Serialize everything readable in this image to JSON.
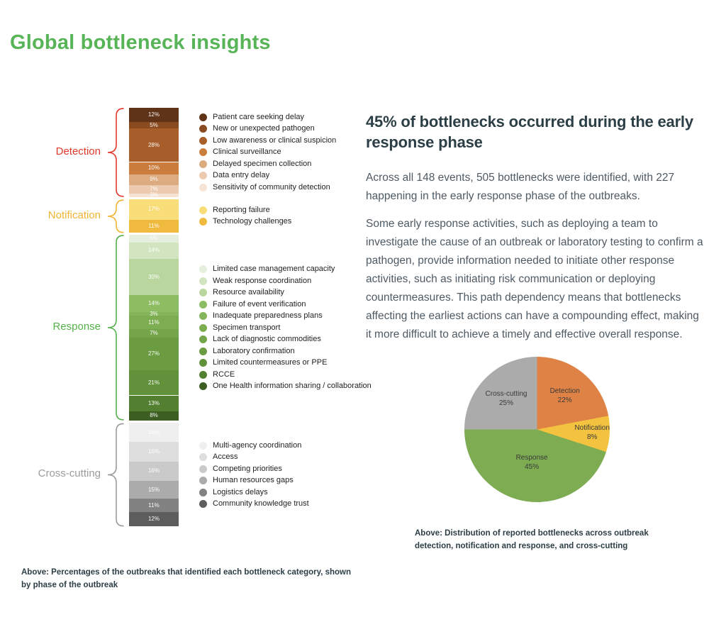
{
  "page": {
    "title": "Global bottleneck insights",
    "title_color": "#57b457",
    "background": "#ffffff"
  },
  "article": {
    "headline": "45% of bottlenecks occurred during the early response phase",
    "paragraphs": [
      "Across all 148 events, 505 bottlenecks were identified, with 227 happening in the early response phase of the outbreaks.",
      "Some early response activities, such as deploying a team to investigate the cause of an outbreak or laboratory testing to confirm a pathogen, provide information needed to initiate other response activities, such as initiating risk communication or deploying countermeasures. This path dependency means that bottlenecks affecting the earliest actions can have a compounding effect, making it more difficult to achieve a timely and effective overall response."
    ]
  },
  "captions": {
    "bar": "Above: Percentages of the outbreaks that identified each bottleneck category, shown by phase of the outbreak",
    "pie": "Above: Distribution of reported bottlenecks across outbreak detection, notification and response, and cross-cutting"
  },
  "chart_data": [
    {
      "type": "bar",
      "stacked": true,
      "orientation": "vertical-stack",
      "value_suffix": "%",
      "note": "values are percentages of outbreaks identifying each bottleneck category",
      "groups": [
        {
          "phase": "Detection",
          "color": "#e2392c",
          "items": [
            {
              "label": "Patient care seeking delay",
              "value": 12,
              "color": "#5e3317"
            },
            {
              "label": "New or unexpected pathogen",
              "value": 5,
              "color": "#8a4a1f"
            },
            {
              "label": "Low awareness or clinical suspicion",
              "value": 28,
              "color": "#a75e2b"
            },
            {
              "label": "Clinical surveillance",
              "value": 10,
              "color": "#cb7d3d"
            },
            {
              "label": "Delayed specimen collection",
              "value": 9,
              "color": "#dcab80"
            },
            {
              "label": "Data entry delay",
              "value": 7,
              "color": "#eccab0"
            },
            {
              "label": "Sensitivity of community detection",
              "value": 3,
              "color": "#f6e3d4"
            }
          ]
        },
        {
          "phase": "Notification",
          "color": "#f0b434",
          "items": [
            {
              "label": "Reporting failure",
              "value": 17,
              "color": "#f8dd78"
            },
            {
              "label": "Technology challenges",
              "value": 11,
              "color": "#f0ba3e"
            }
          ]
        },
        {
          "phase": "Response",
          "color": "#55b14b",
          "items": [
            {
              "label": "Limited case management capacity",
              "value": 6,
              "color": "#e6efdd"
            },
            {
              "label": "Weak response coordination",
              "value": 14,
              "color": "#d2e4c0"
            },
            {
              "label": "Resource availability",
              "value": 30,
              "color": "#b8d69d"
            },
            {
              "label": "Failure of event verification",
              "value": 14,
              "color": "#8dbd62"
            },
            {
              "label": "Inadequate preparedness plans",
              "value": 3,
              "color": "#85b55a"
            },
            {
              "label": "Specimen transport",
              "value": 11,
              "color": "#7dad51"
            },
            {
              "label": "Lack of diagnostic commodities",
              "value": 7,
              "color": "#74a54a"
            },
            {
              "label": "Laboratory confirmation",
              "value": 27,
              "color": "#6b9c42"
            },
            {
              "label": "Limited countermeasures or PPE",
              "value": 21,
              "color": "#61913a"
            },
            {
              "label": "RCCE",
              "value": 13,
              "color": "#538030"
            },
            {
              "label": "One Health information sharing / collaboration",
              "value": 8,
              "color": "#3c5e22"
            }
          ]
        },
        {
          "phase": "Cross-cutting",
          "color": "#9b9b9b",
          "items": [
            {
              "label": "Multi-agency coordination",
              "value": 16,
              "color": "#efefef"
            },
            {
              "label": "Access",
              "value": 16,
              "color": "#dedede"
            },
            {
              "label": "Competing priorities",
              "value": 16,
              "color": "#cacaca"
            },
            {
              "label": "Human resources gaps",
              "value": 15,
              "color": "#ababab"
            },
            {
              "label": "Logistics delays",
              "value": 11,
              "color": "#828282"
            },
            {
              "label": "Community knowledge trust",
              "value": 12,
              "color": "#5d5d5d"
            }
          ]
        }
      ]
    },
    {
      "type": "pie",
      "total_events": 148,
      "total_bottlenecks": 505,
      "early_response_bottlenecks": 227,
      "slices": [
        {
          "label": "Detection",
          "value": 22,
          "color": "#de8345"
        },
        {
          "label": "Notification",
          "value": 8,
          "color": "#f3c33f"
        },
        {
          "label": "Response",
          "value": 45,
          "color": "#7dac52"
        },
        {
          "label": "Cross-cutting",
          "value": 25,
          "color": "#ababab"
        }
      ]
    }
  ]
}
